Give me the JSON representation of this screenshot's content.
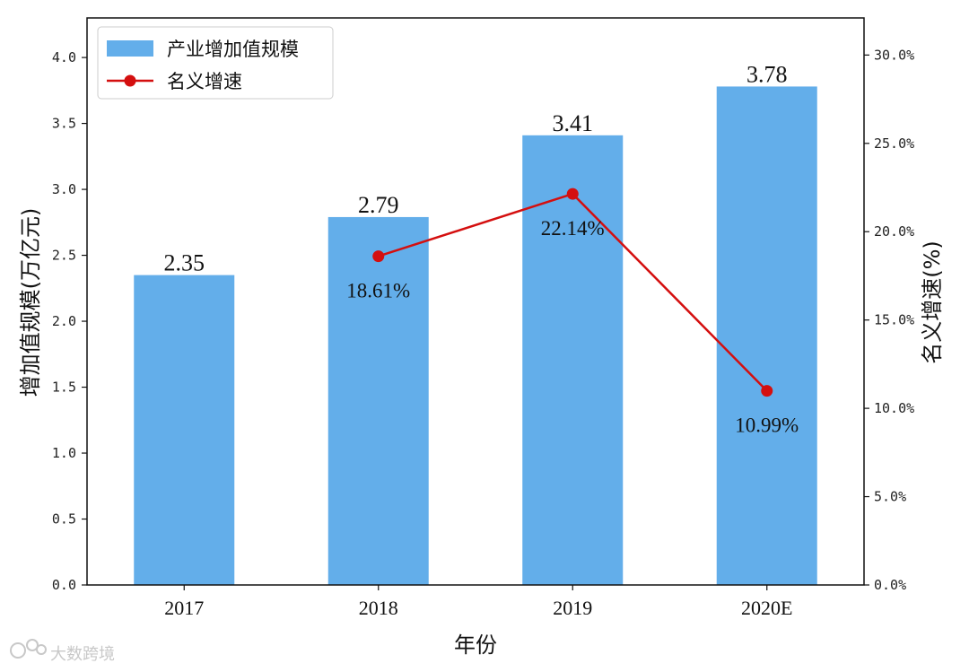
{
  "chart_data": {
    "type": "bar",
    "categories": [
      "2017",
      "2018",
      "2019",
      "2020E"
    ],
    "series": [
      {
        "name": "产业增加值规模",
        "type": "bar",
        "axis": "left",
        "values": [
          2.35,
          2.79,
          3.41,
          3.78
        ],
        "labels": [
          "2.35",
          "2.79",
          "3.41",
          "3.78"
        ],
        "color": "#63aeea"
      },
      {
        "name": "名义增速",
        "type": "line",
        "axis": "right",
        "values": [
          null,
          18.61,
          22.14,
          10.99
        ],
        "labels": [
          "",
          "18.61%",
          "22.14%",
          "10.99%"
        ],
        "color": "#d40f0f"
      }
    ],
    "xlabel": "年份",
    "ylabel": "增加值规模(万亿元)",
    "y2label": "名义增速(%)",
    "ylim": [
      0,
      4.3
    ],
    "y2lim": [
      0,
      32.1
    ],
    "yticks": [
      "0.0",
      "0.5",
      "1.0",
      "1.5",
      "2.0",
      "2.5",
      "3.0",
      "3.5",
      "4.0"
    ],
    "y2ticks": [
      "0.0%",
      "5.0%",
      "10.0%",
      "15.0%",
      "20.0%",
      "25.0%",
      "30.0%"
    ],
    "grid": false,
    "legend_position": "top-left"
  },
  "watermark": {
    "text": "大数跨境"
  }
}
